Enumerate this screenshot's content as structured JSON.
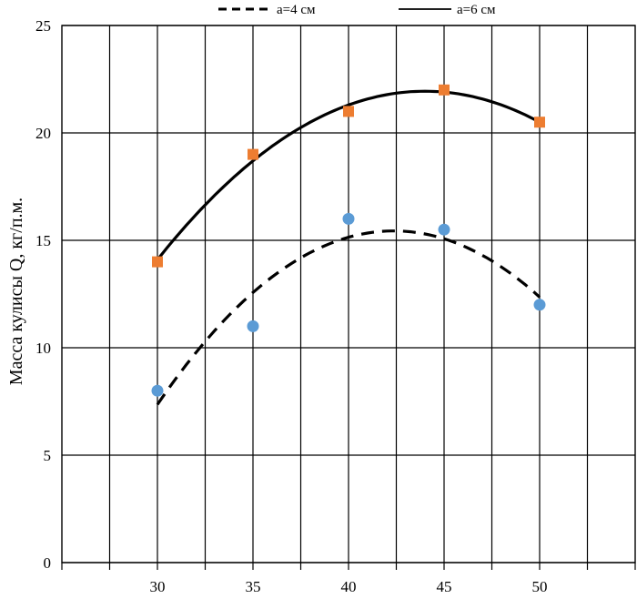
{
  "chart_data": {
    "type": "scatter",
    "title": "",
    "xlabel": "",
    "ylabel": "Масса кулисы Q, кг/п.м.",
    "xlim": [
      25,
      55
    ],
    "ylim": [
      0,
      25
    ],
    "x_ticks": [
      30,
      35,
      40,
      45,
      50
    ],
    "y_ticks": [
      0,
      5,
      10,
      15,
      20,
      25
    ],
    "grid": true,
    "legend_position": "top",
    "series": [
      {
        "name": "a=4 см",
        "marker": "circle",
        "marker_color": "#5b9bd5",
        "line_style": "dashed",
        "line_color": "#000000",
        "x": [
          30,
          35,
          40,
          45,
          50
        ],
        "y": [
          8,
          11,
          16,
          15.5,
          12
        ],
        "trend_fit": "polynomial-2",
        "trend_x_range": [
          30,
          50
        ]
      },
      {
        "name": "a=6 см",
        "marker": "square",
        "marker_color": "#ed7d31",
        "line_style": "solid",
        "line_color": "#000000",
        "x": [
          30,
          35,
          40,
          45,
          50
        ],
        "y": [
          14,
          19,
          21,
          22,
          20.5
        ],
        "trend_fit": "polynomial-2",
        "trend_x_range": [
          30,
          50
        ]
      }
    ]
  }
}
